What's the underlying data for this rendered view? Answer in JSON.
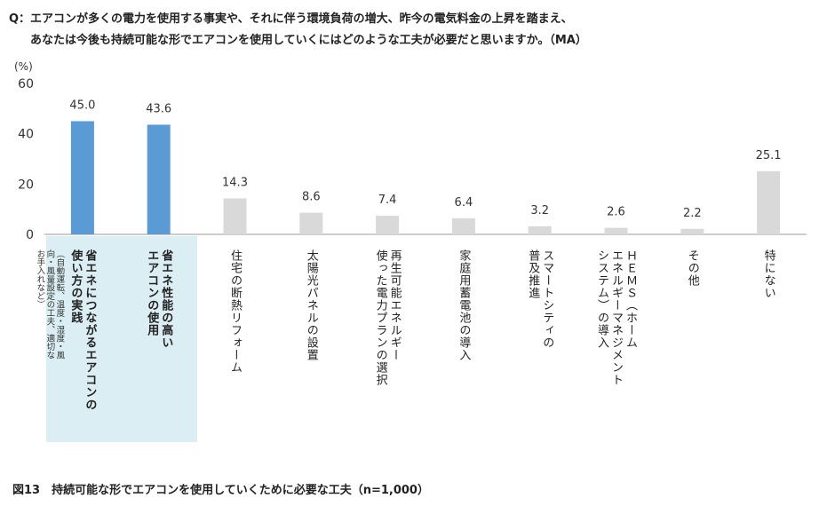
{
  "question": {
    "line1": "Q：エアコンが多くの電力を使用する事実や、それに伴う環境負荷の増大、昨今の電気料金の上昇を踏まえ、",
    "line2": "あなたは今後も持続可能な形でエアコンを使用していくにはどのような工夫が必要だと思いますか。（MA）"
  },
  "figure_caption": "図13　持続可能な形でエアコンを使用していくために必要な工夫（n=1,000）",
  "colors": {
    "highlight": "#5b9bd5",
    "normal": "#d9d9d9",
    "highlight_bg": "#daeef3",
    "axis": "#999999"
  },
  "chart_data": {
    "type": "bar",
    "yunit": "(%)",
    "ylim": [
      0,
      60
    ],
    "yticks": [
      "0",
      "20",
      "40",
      "60"
    ],
    "grid": false,
    "categories": [
      "省エネにつながるエアコンの使い方の実践",
      "省エネ性能の高いエアコンの使用",
      "住宅の断熱リフォーム",
      "太陽光パネルの設置",
      "再生可能エネルギー使った電力プランの選択",
      "家庭用蓄電池の導入",
      "スマートシティの普及推進",
      "ＨＥＭＳ（ホームエネルギーマネジメントシステム）の導入",
      "その他",
      "特にない"
    ],
    "category_lines": [
      [
        "省エネにつながるエアコンの",
        "使い方の実践"
      ],
      [
        "省エネ性能の高い",
        "エアコンの使用"
      ],
      [
        "住宅の断熱リフォーム"
      ],
      [
        "太陽光パネルの設置"
      ],
      [
        "再生可能エネルギー",
        "使った電力プランの選択"
      ],
      [
        "家庭用蓄電池の導入"
      ],
      [
        "スマートシティの",
        "普及推進"
      ],
      [
        "ＨＥＭＳ（ホーム",
        "エネルギーマネジメント",
        "システム）の導入"
      ],
      [
        "その他"
      ],
      [
        "特にない"
      ]
    ],
    "category_notes": [
      "（自動運転、温度・湿度・風向・風量設定の工夫、適切なお手入れなど）"
    ],
    "values": [
      45.0,
      43.6,
      14.3,
      8.6,
      7.4,
      6.4,
      3.2,
      2.6,
      2.2,
      25.1
    ],
    "value_labels": [
      "45.0",
      "43.6",
      "14.3",
      "8.6",
      "7.4",
      "6.4",
      "3.2",
      "2.6",
      "2.2",
      "25.1"
    ],
    "highlighted": [
      true,
      true,
      false,
      false,
      false,
      false,
      false,
      false,
      false,
      false
    ]
  }
}
